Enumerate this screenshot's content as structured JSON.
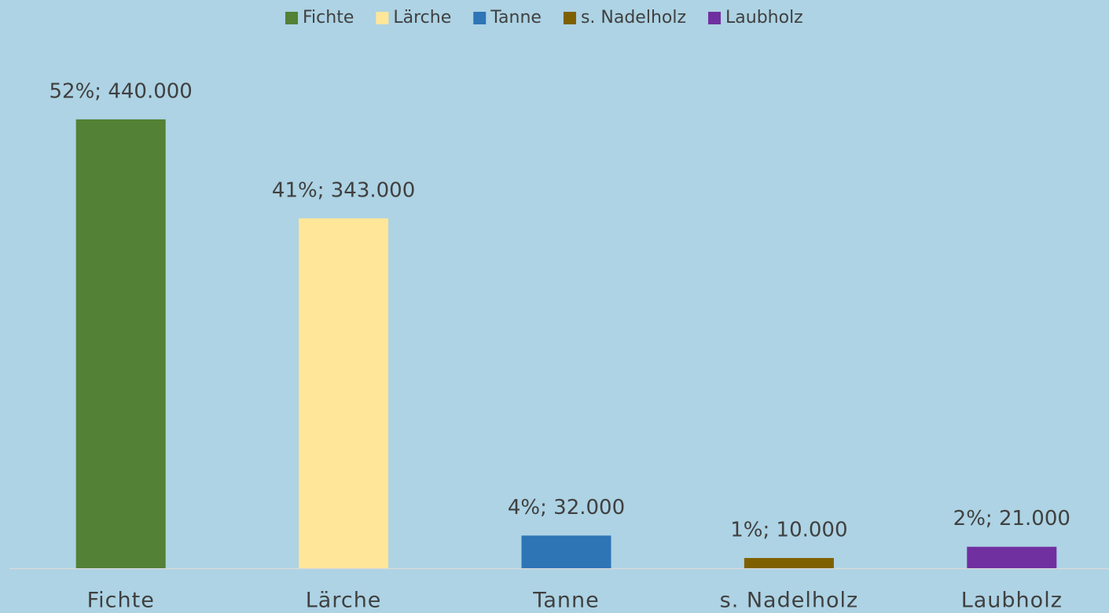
{
  "chart_data": {
    "type": "bar",
    "categories": [
      "Fichte",
      "Lärche",
      "Tanne",
      "s. Nadelholz",
      "Laubholz"
    ],
    "values": [
      440000,
      343000,
      32000,
      10000,
      21000
    ],
    "value_labels": [
      "52%; 440.000",
      "41%; 343.000",
      "4%; 32.000",
      "1%; 10.000",
      "2%; 21.000"
    ],
    "colors": [
      "#538135",
      "#ffe699",
      "#2e75b6",
      "#7f6000",
      "#7030a0"
    ],
    "ylim": [
      0,
      500000
    ],
    "legend": "top"
  }
}
